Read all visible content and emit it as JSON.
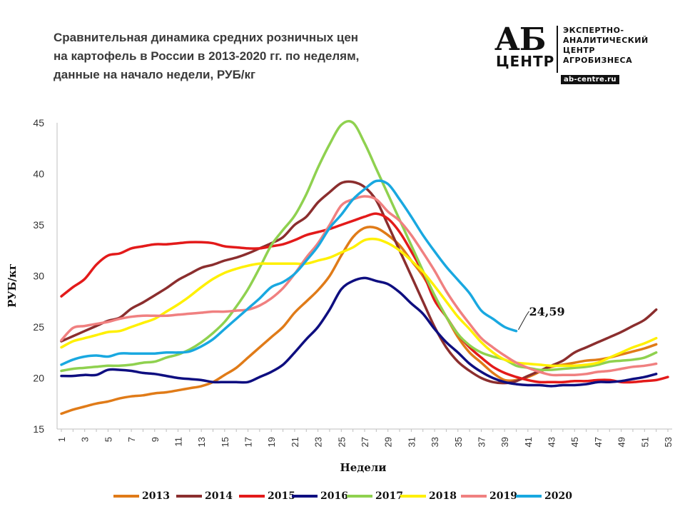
{
  "title": {
    "line1": "Сравнительная  динамика  средних  розничных  цен",
    "line2": "на картофель в России в 2013-2020 гг. по неделям,",
    "line3": "данные  на начало  недели, РУБ/кг"
  },
  "logo": {
    "ab": "АБ",
    "centr": "ЦЕНТР",
    "line1": "ЭКСПЕРТНО-",
    "line2": "АНАЛИТИЧЕСКИЙ",
    "line3": "ЦЕНТР",
    "line4": "АГРОБИЗНЕСА",
    "url": "ab-centre.ru"
  },
  "chart_data": {
    "type": "line",
    "title": "Сравнительная динамика средних розничных цен на картофель в России в 2013-2020 гг. по неделям, данные на начало недели, РУБ/кг",
    "xlabel": "Недели",
    "ylabel": "РУБ/кг",
    "xlim": [
      1,
      53
    ],
    "ylim": [
      15,
      45
    ],
    "y_ticks": [
      15,
      20,
      25,
      30,
      35,
      40,
      45
    ],
    "x_ticks": [
      1,
      3,
      5,
      7,
      9,
      11,
      13,
      15,
      17,
      19,
      21,
      23,
      25,
      27,
      29,
      31,
      33,
      35,
      37,
      39,
      41,
      43,
      45,
      47,
      49,
      51,
      53
    ],
    "annotation": {
      "text": "24,59",
      "series": "2020",
      "week": 40,
      "value": 24.59
    },
    "series": [
      {
        "name": "2013",
        "color": "#E07B18",
        "start": 1,
        "values": [
          16.5,
          16.9,
          17.2,
          17.5,
          17.7,
          18.0,
          18.2,
          18.3,
          18.5,
          18.6,
          18.8,
          19.0,
          19.2,
          19.6,
          20.3,
          21.0,
          22.0,
          23.0,
          24.0,
          25.0,
          26.4,
          27.5,
          28.6,
          30.0,
          32.0,
          33.8,
          34.7,
          34.7,
          34.0,
          33.0,
          31.5,
          30.0,
          28.0,
          26.0,
          24.0,
          22.5,
          21.5,
          20.5,
          19.8,
          19.8,
          20.1,
          20.6,
          21.1,
          21.3,
          21.5,
          21.7,
          21.8,
          22.0,
          22.3,
          22.6,
          22.9,
          23.3
        ]
      },
      {
        "name": "2014",
        "color": "#8B2E2E",
        "start": 1,
        "values": [
          23.6,
          24.1,
          24.6,
          25.1,
          25.6,
          25.9,
          26.8,
          27.4,
          28.1,
          28.8,
          29.6,
          30.2,
          30.8,
          31.1,
          31.5,
          31.8,
          32.2,
          32.7,
          33.2,
          33.8,
          35.0,
          35.8,
          37.2,
          38.2,
          39.1,
          39.2,
          38.7,
          37.4,
          35.0,
          32.5,
          30.0,
          27.5,
          25.0,
          23.0,
          21.6,
          20.7,
          20.0,
          19.6,
          19.5,
          19.7,
          20.2,
          20.7,
          21.2,
          21.7,
          22.5,
          23.0,
          23.5,
          24.0,
          24.5,
          25.1,
          25.7,
          26.7
        ]
      },
      {
        "name": "2015",
        "color": "#E31A1A",
        "start": 1,
        "values": [
          28.0,
          28.9,
          29.7,
          31.1,
          32.0,
          32.2,
          32.7,
          32.9,
          33.1,
          33.1,
          33.2,
          33.3,
          33.3,
          33.2,
          32.9,
          32.8,
          32.7,
          32.7,
          32.9,
          33.1,
          33.5,
          34.0,
          34.3,
          34.6,
          35.0,
          35.4,
          35.8,
          36.1,
          35.6,
          34.3,
          32.4,
          30.3,
          27.6,
          26.0,
          24.3,
          23.0,
          22.0,
          21.1,
          20.5,
          20.1,
          19.8,
          19.6,
          19.6,
          19.6,
          19.7,
          19.7,
          19.8,
          19.8,
          19.6,
          19.6,
          19.7,
          19.8,
          20.1
        ]
      },
      {
        "name": "2016",
        "color": "#0E0E80",
        "start": 1,
        "values": [
          20.2,
          20.2,
          20.3,
          20.3,
          20.8,
          20.8,
          20.7,
          20.5,
          20.4,
          20.2,
          20.0,
          19.9,
          19.8,
          19.6,
          19.6,
          19.6,
          19.6,
          20.1,
          20.6,
          21.3,
          22.5,
          23.8,
          25.0,
          26.7,
          28.7,
          29.5,
          29.8,
          29.5,
          29.2,
          28.4,
          27.3,
          26.3,
          24.8,
          23.5,
          22.5,
          21.4,
          20.6,
          20.0,
          19.6,
          19.4,
          19.3,
          19.3,
          19.2,
          19.3,
          19.3,
          19.4,
          19.6,
          19.6,
          19.7,
          19.9,
          20.1,
          20.4
        ]
      },
      {
        "name": "2017",
        "color": "#8FD14F",
        "start": 1,
        "values": [
          20.7,
          20.9,
          21.0,
          21.1,
          21.2,
          21.2,
          21.3,
          21.5,
          21.6,
          22.0,
          22.3,
          22.8,
          23.5,
          24.4,
          25.5,
          27.0,
          28.7,
          30.8,
          33.0,
          34.5,
          35.9,
          38.0,
          40.6,
          42.9,
          44.8,
          45.0,
          43.0,
          40.5,
          38.0,
          35.5,
          33.0,
          30.5,
          28.1,
          26.0,
          24.3,
          23.2,
          22.5,
          22.1,
          21.8,
          21.2,
          21.0,
          20.8,
          20.8,
          20.9,
          21.0,
          21.1,
          21.3,
          21.6,
          21.7,
          21.8,
          22.0,
          22.5
        ]
      },
      {
        "name": "2018",
        "color": "#FFF000",
        "start": 1,
        "values": [
          23.0,
          23.6,
          23.9,
          24.2,
          24.5,
          24.6,
          25.0,
          25.4,
          25.8,
          26.5,
          27.2,
          28.0,
          28.9,
          29.7,
          30.3,
          30.7,
          31.0,
          31.2,
          31.2,
          31.2,
          31.2,
          31.2,
          31.5,
          31.8,
          32.3,
          32.8,
          33.5,
          33.6,
          33.2,
          32.5,
          31.5,
          30.4,
          29.0,
          27.5,
          26.0,
          24.8,
          23.5,
          22.5,
          21.8,
          21.5,
          21.4,
          21.3,
          21.2,
          21.2,
          21.2,
          21.3,
          21.5,
          22.0,
          22.5,
          23.0,
          23.4,
          23.9
        ]
      },
      {
        "name": "2019",
        "color": "#F08080",
        "start": 1,
        "values": [
          23.7,
          24.9,
          25.1,
          25.3,
          25.5,
          25.8,
          26.0,
          26.1,
          26.1,
          26.1,
          26.2,
          26.3,
          26.4,
          26.5,
          26.5,
          26.6,
          26.7,
          27.1,
          27.8,
          28.8,
          30.2,
          31.8,
          33.2,
          35.0,
          36.9,
          37.5,
          37.8,
          37.5,
          36.3,
          35.4,
          34.0,
          32.3,
          30.5,
          28.5,
          26.8,
          25.3,
          23.9,
          23.0,
          22.2,
          21.5,
          21.0,
          20.6,
          20.3,
          20.3,
          20.3,
          20.4,
          20.6,
          20.7,
          20.9,
          21.1,
          21.2,
          21.4
        ]
      },
      {
        "name": "2020",
        "color": "#19A8E0",
        "start": 1,
        "values": [
          21.3,
          21.8,
          22.1,
          22.2,
          22.1,
          22.4,
          22.4,
          22.4,
          22.4,
          22.5,
          22.5,
          22.6,
          23.1,
          23.8,
          24.8,
          25.8,
          26.8,
          27.8,
          28.9,
          29.4,
          30.2,
          31.5,
          32.9,
          34.7,
          36.0,
          37.5,
          38.5,
          39.3,
          39.0,
          37.5,
          35.8,
          34.0,
          32.4,
          30.9,
          29.6,
          28.3,
          26.6,
          25.8,
          25.0,
          24.6
        ]
      }
    ]
  }
}
